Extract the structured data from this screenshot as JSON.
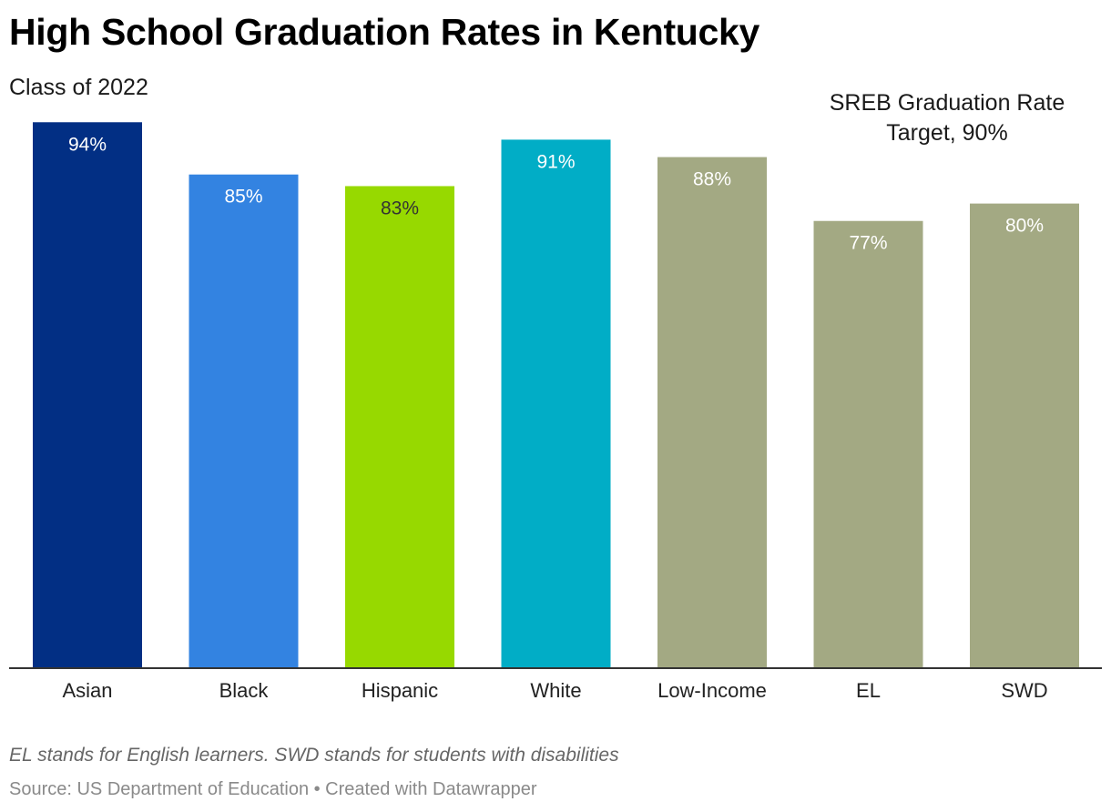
{
  "header": {
    "title": "High School Graduation Rates in Kentucky",
    "subtitle": "Class of 2022"
  },
  "annotation": {
    "line1": "SREB Graduation Rate",
    "line2": "Target, 90%"
  },
  "chart_data": {
    "type": "bar",
    "title": "High School Graduation Rates in Kentucky",
    "subtitle": "Class of 2022",
    "xlabel": "",
    "ylabel": "",
    "ylim": [
      0,
      100
    ],
    "grid": false,
    "categories": [
      "Asian",
      "Black",
      "Hispanic",
      "White",
      "Low-Income",
      "EL",
      "SWD"
    ],
    "values": [
      94,
      85,
      83,
      91,
      88,
      77,
      80
    ],
    "value_labels": [
      "94%",
      "85%",
      "83%",
      "91%",
      "88%",
      "77%",
      "80%"
    ],
    "colors": [
      "#022F84",
      "#3383E1",
      "#97D900",
      "#01ADC6",
      "#A3A983",
      "#A3A983",
      "#A3A983"
    ],
    "label_colors": [
      "#ffffff",
      "#ffffff",
      "#333333",
      "#ffffff",
      "#ffffff",
      "#ffffff",
      "#ffffff"
    ],
    "annotations": [
      "SREB Graduation Rate Target, 90%"
    ]
  },
  "footer": {
    "notes": "EL stands for English learners. SWD stands for students with disabilities",
    "source": "Source: US Department of Education • Created with Datawrapper"
  }
}
